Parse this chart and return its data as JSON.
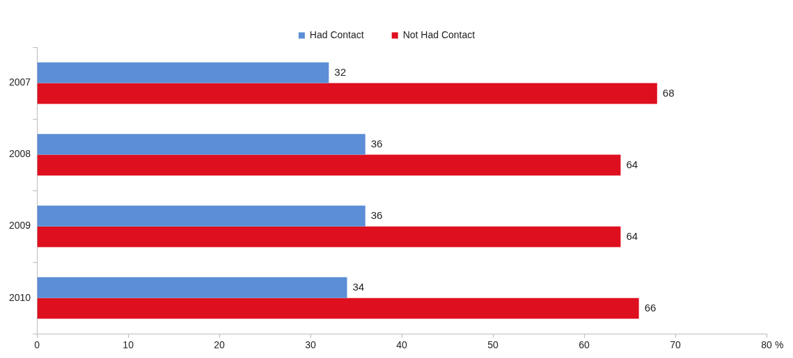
{
  "chart_data": {
    "type": "bar",
    "orientation": "horizontal",
    "categories": [
      "2007",
      "2008",
      "2009",
      "2010"
    ],
    "series": [
      {
        "name": "Had Contact",
        "color": "#5b8ed6",
        "values": [
          32,
          36,
          36,
          34
        ]
      },
      {
        "name": "Not Had Contact",
        "color": "#de0f1e",
        "values": [
          68,
          64,
          64,
          66
        ]
      }
    ],
    "xlabel": "%",
    "xlim": [
      0,
      80
    ],
    "xticks": [
      0,
      10,
      20,
      30,
      40,
      50,
      60,
      70,
      80
    ],
    "grid": false,
    "legend": "top",
    "data_labels": true
  }
}
